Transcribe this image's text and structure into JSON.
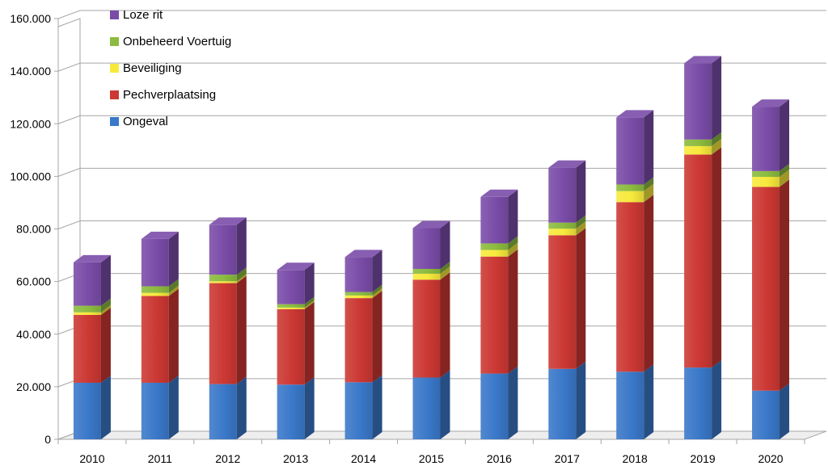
{
  "chart_data": {
    "type": "bar",
    "stacked": true,
    "three_d": true,
    "categories": [
      "2010",
      "2011",
      "2012",
      "2013",
      "2014",
      "2015",
      "2016",
      "2017",
      "2018",
      "2019",
      "2020"
    ],
    "series": [
      {
        "name": "Ongeval",
        "color": "#3a78c9",
        "values": [
          21500,
          21500,
          21000,
          20800,
          21700,
          23500,
          25000,
          26800,
          25700,
          27300,
          18500
        ]
      },
      {
        "name": "Pechverplaatsing",
        "color": "#cc3833",
        "values": [
          25800,
          33000,
          38400,
          28700,
          32000,
          37200,
          44500,
          50800,
          64500,
          81000,
          77500
        ]
      },
      {
        "name": "Beveiliging",
        "color": "#f7e93c",
        "values": [
          1000,
          1200,
          700,
          600,
          1000,
          2300,
          2500,
          2500,
          4200,
          3200,
          3800
        ]
      },
      {
        "name": "Onbeheerd Voertuig",
        "color": "#8bbb3f",
        "values": [
          2500,
          2500,
          2500,
          1300,
          1300,
          1800,
          2500,
          2300,
          2500,
          2500,
          2200
        ]
      },
      {
        "name": "Loze rit",
        "color": "#7a4ca8",
        "values": [
          16500,
          18000,
          19000,
          13000,
          13300,
          15500,
          17700,
          20900,
          25500,
          29000,
          24500
        ]
      }
    ],
    "ylim": [
      0,
      160000
    ],
    "yticks": [
      0,
      20000,
      40000,
      60000,
      80000,
      100000,
      120000,
      140000,
      160000
    ],
    "ytick_labels": [
      "0",
      "20.000",
      "40.000",
      "60.000",
      "80.000",
      "100.000",
      "120.000",
      "140.000",
      "160.000"
    ],
    "legend_order": [
      "Loze rit",
      "Onbeheerd Voertuig",
      "Beveiliging",
      "Pechverplaatsing",
      "Ongeval"
    ],
    "legend_position": "top-left",
    "grid": true,
    "title": "",
    "xlabel": "",
    "ylabel": ""
  }
}
